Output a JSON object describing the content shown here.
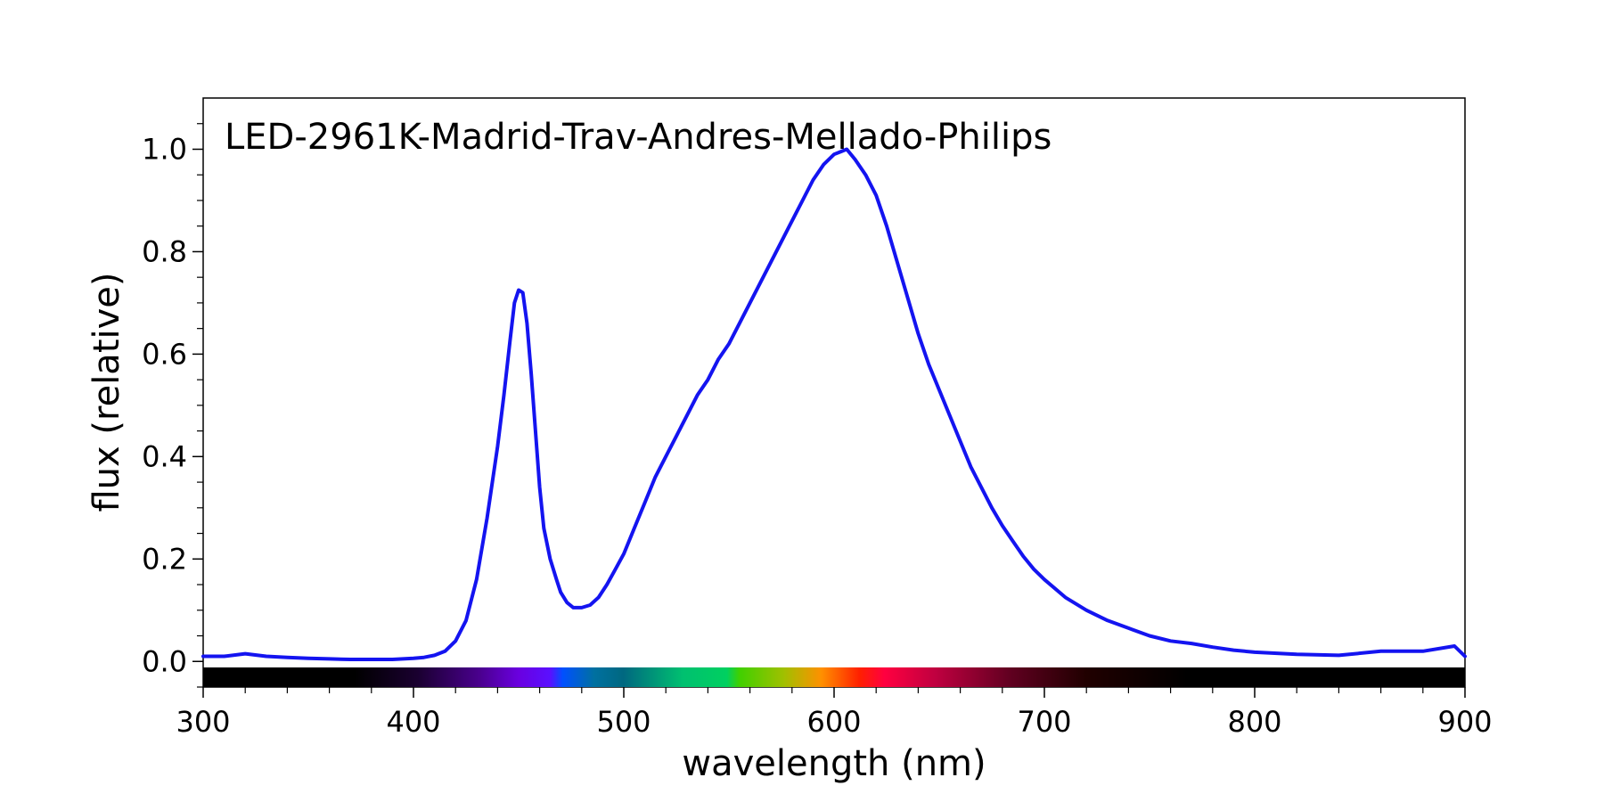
{
  "chart_data": {
    "type": "line",
    "title": "LED-2961K-Madrid-Trav-Andres-Mellado-Philips",
    "xlabel": "wavelength (nm)",
    "ylabel": "flux (relative)",
    "xlim": [
      300,
      900
    ],
    "ylim": [
      -0.05,
      1.1
    ],
    "x_ticks": [
      "300",
      "400",
      "500",
      "600",
      "700",
      "800",
      "900"
    ],
    "y_ticks": [
      "0.0",
      "0.2",
      "0.4",
      "0.6",
      "0.8",
      "1.0"
    ],
    "grid": false,
    "legend": "none",
    "line_color": "#1414f0",
    "spectrum_bar": true,
    "series": [
      {
        "x": [
          300,
          310,
          320,
          330,
          340,
          350,
          360,
          370,
          380,
          390,
          400,
          405,
          410,
          415,
          420,
          425,
          430,
          435,
          440,
          443,
          446,
          448,
          450,
          452,
          454,
          456,
          458,
          460,
          462,
          465,
          468,
          470,
          473,
          476,
          480,
          484,
          488,
          492,
          496,
          500,
          505,
          510,
          515,
          520,
          525,
          530,
          535,
          540,
          545,
          550,
          555,
          560,
          565,
          570,
          575,
          580,
          585,
          590,
          595,
          600,
          603,
          606,
          610,
          615,
          620,
          625,
          630,
          635,
          640,
          645,
          650,
          655,
          660,
          665,
          670,
          675,
          680,
          685,
          690,
          695,
          700,
          710,
          720,
          730,
          740,
          750,
          760,
          770,
          780,
          790,
          800,
          820,
          840,
          860,
          880,
          895,
          900
        ],
        "y": [
          0.01,
          0.01,
          0.015,
          0.01,
          0.008,
          0.006,
          0.005,
          0.004,
          0.004,
          0.004,
          0.006,
          0.008,
          0.012,
          0.02,
          0.04,
          0.08,
          0.16,
          0.28,
          0.42,
          0.52,
          0.63,
          0.7,
          0.725,
          0.72,
          0.66,
          0.56,
          0.45,
          0.34,
          0.26,
          0.2,
          0.16,
          0.135,
          0.115,
          0.105,
          0.105,
          0.11,
          0.125,
          0.15,
          0.18,
          0.21,
          0.26,
          0.31,
          0.36,
          0.4,
          0.44,
          0.48,
          0.52,
          0.55,
          0.59,
          0.62,
          0.66,
          0.7,
          0.74,
          0.78,
          0.82,
          0.86,
          0.9,
          0.94,
          0.97,
          0.99,
          0.995,
          1.0,
          0.98,
          0.95,
          0.91,
          0.85,
          0.78,
          0.71,
          0.64,
          0.58,
          0.53,
          0.48,
          0.43,
          0.38,
          0.34,
          0.3,
          0.265,
          0.235,
          0.205,
          0.18,
          0.16,
          0.125,
          0.1,
          0.08,
          0.065,
          0.05,
          0.04,
          0.035,
          0.028,
          0.022,
          0.018,
          0.014,
          0.012,
          0.02,
          0.02,
          0.03,
          0.01
        ]
      }
    ]
  }
}
